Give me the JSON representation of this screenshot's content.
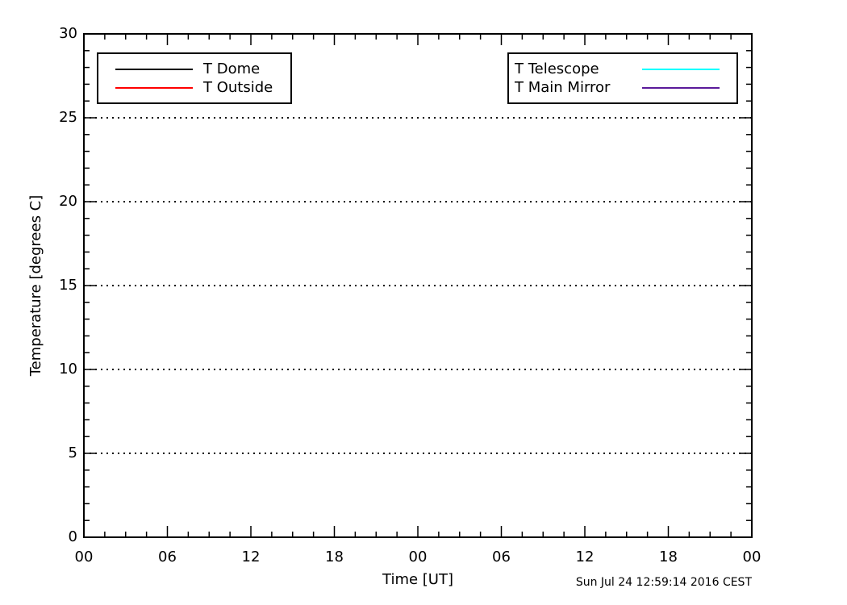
{
  "chart_data": {
    "type": "line",
    "xlabel": "Time [UT]",
    "ylabel": "Temperature [degrees C]",
    "annotation": "Sun Jul 24 12:59:14 2016 CEST",
    "xlim": [
      0,
      48
    ],
    "xticks": [
      {
        "value": 0,
        "label": "00"
      },
      {
        "value": 6,
        "label": "06"
      },
      12,
      18,
      {
        "value": 24,
        "label": "00"
      },
      {
        "value": 30,
        "label": "06"
      },
      {
        "value": 36,
        "label": "12"
      },
      {
        "value": 42,
        "label": "18"
      },
      {
        "value": 48,
        "label": "00"
      }
    ],
    "ylim": [
      0,
      30
    ],
    "yticks": [
      0,
      5,
      10,
      15,
      20,
      25,
      30
    ],
    "grid": true,
    "series": [
      {
        "name": "T Dome",
        "color": "#000000",
        "legend": "upper left",
        "values": []
      },
      {
        "name": "T Outside",
        "color": "#ff0000",
        "legend": "upper left",
        "values": []
      },
      {
        "name": "T Telescope",
        "color": "#00ffff",
        "legend": "upper right",
        "values": []
      },
      {
        "name": "T Main Mirror",
        "color": "#5a1a9a",
        "legend": "upper right",
        "values": []
      }
    ]
  }
}
